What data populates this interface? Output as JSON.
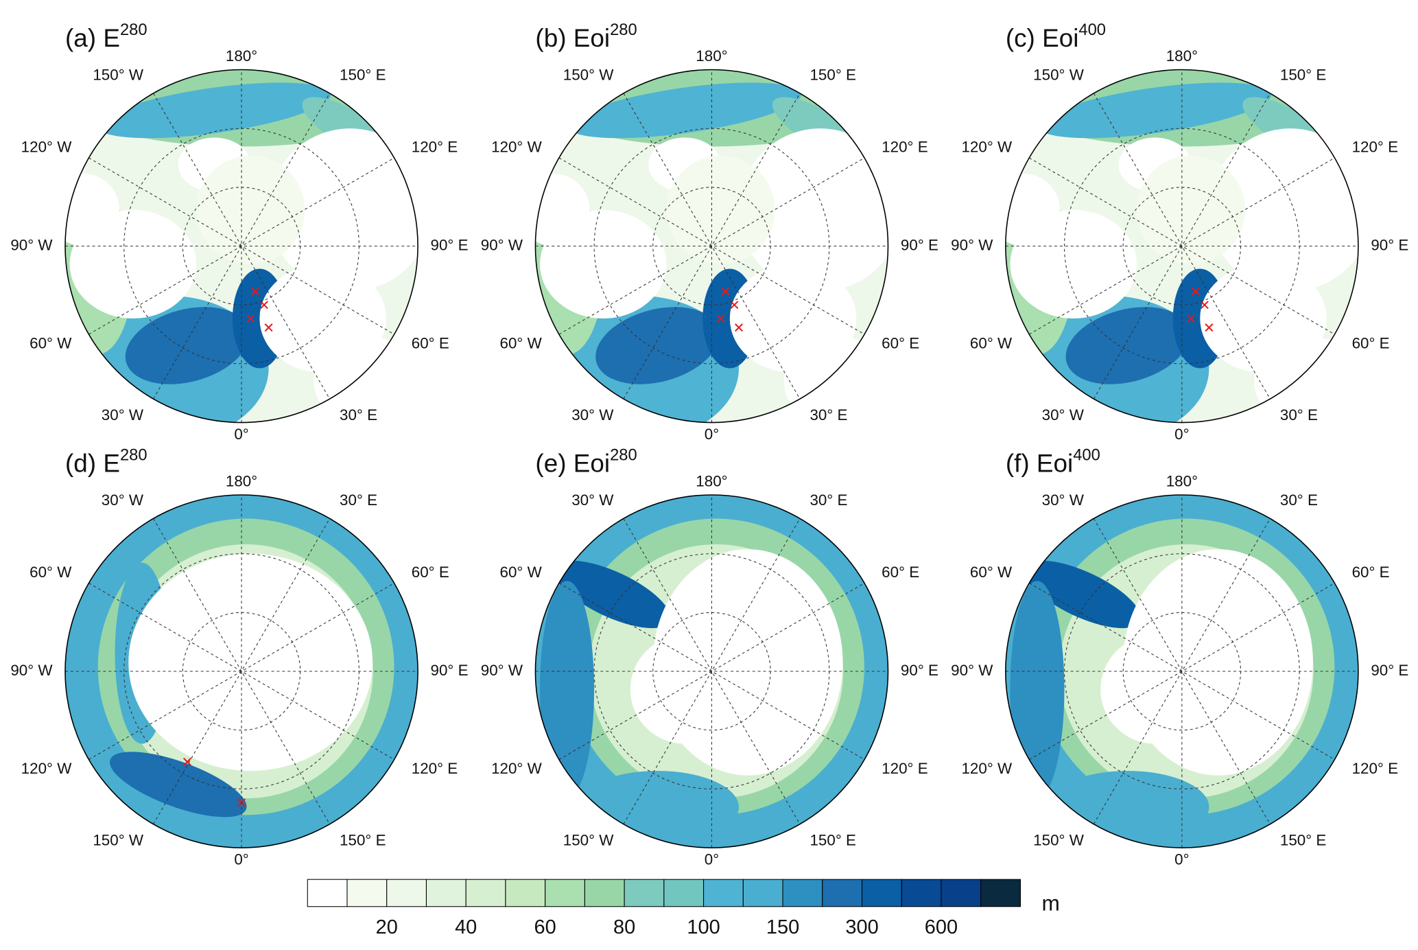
{
  "rows": [
    {
      "panels": [
        {
          "label": "(a) E",
          "superscript": "280"
        },
        {
          "label": "(b) Eoi",
          "superscript": "280"
        },
        {
          "label": "(c) Eoi",
          "superscript": "400"
        }
      ],
      "lon_labels": [
        "180°",
        "150° E",
        "120° E",
        "90° E",
        "60° E",
        "30° E",
        "0°",
        "30° W",
        "60° W",
        "90° W",
        "120° W",
        "150° W"
      ]
    },
    {
      "panels": [
        {
          "label": "(d) E",
          "superscript": "280"
        },
        {
          "label": "(e) Eoi",
          "superscript": "280"
        },
        {
          "label": "(f) Eoi",
          "superscript": "400"
        }
      ],
      "lon_labels": [
        "180°",
        "30° E",
        "60° E",
        "90° E",
        "120° E",
        "150° E",
        "0°",
        "150° W",
        "120° W",
        "90° W",
        "60° W",
        "30° W"
      ]
    }
  ],
  "colorbar": {
    "colors": [
      "#ffffff",
      "#f4fbee",
      "#eef8ea",
      "#e0f3dc",
      "#d6efd0",
      "#c6e9c0",
      "#aadfb0",
      "#98d6a8",
      "#7dcbbf",
      "#72c6c0",
      "#4fb3d3",
      "#4aaed0",
      "#2e8fc1",
      "#1d6fb0",
      "#0b5fa5",
      "#084a93",
      "#08408a",
      "#0a2a40"
    ],
    "ticks": [
      20,
      40,
      60,
      80,
      100,
      150,
      300,
      600
    ],
    "unit": "m"
  }
}
